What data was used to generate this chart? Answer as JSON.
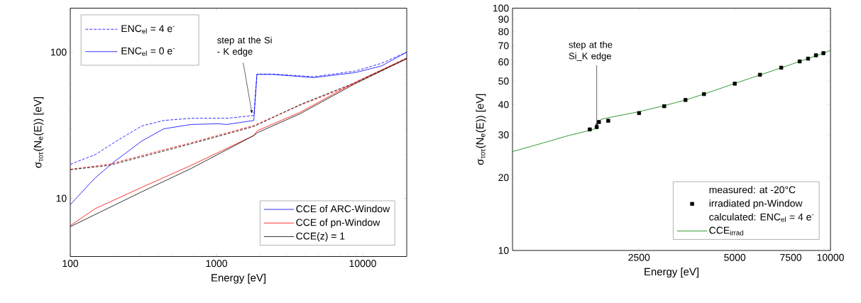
{
  "chart_data": [
    {
      "type": "line",
      "log": "xy",
      "xlim": [
        100,
        20000
      ],
      "ylim": [
        4,
        200
      ],
      "xticks": [
        100,
        1000,
        10000
      ],
      "yticks": [
        10,
        100
      ],
      "xlabel": "Energy [eV]",
      "ylabel": "σ$_{τοτ}$(N$_{e}$(E)) [eV]",
      "legend": "bottom right",
      "annotations": [
        "ENC$_{el}$ = 0 e$^{-}$",
        {
          "text": "step at the Si - K edge",
          "x": 1750,
          "y": 38
        }
      ],
      "series": [
        {
          "name": "ENC$_{el}$ = 4 e$^{-}$",
          "color": "#0000ff",
          "line_style": "dashed",
          "x": [
            100,
            148,
            201,
            309,
            436,
            670,
            1170,
            1730,
            1800,
            1890,
            2430,
            4630,
            8900,
            13500,
            20000
          ],
          "values": [
            17.1,
            19.9,
            24.2,
            31.3,
            34.1,
            35.3,
            35.3,
            36.7,
            37,
            70.8,
            70.8,
            67.9,
            74.3,
            84,
            100
          ]
        },
        {
          "name": "CCE of ARC-Window",
          "color": "#0000ff",
          "line_style": "solid",
          "x": [
            100,
            148,
            201,
            309,
            436,
            670,
            1030,
            1170,
            1800,
            1890,
            2430,
            4630,
            8900,
            13500,
            20000
          ],
          "values": [
            9.06,
            13.8,
            17.9,
            24.7,
            29.9,
            32.0,
            32.4,
            32.0,
            34.1,
            70.4,
            70.4,
            67.0,
            72.5,
            80.6,
            100
          ]
        },
        {
          "color": "#ff0000",
          "line_style": "dashed",
          "x": [
            100,
            184,
            351,
            670,
            1800,
            3730,
            8900,
            20000
          ],
          "values": [
            15.8,
            17.1,
            20.3,
            24.0,
            31.5,
            43.3,
            61,
            90.9
          ]
        },
        {
          "color": "#000000",
          "line_style": "dashed",
          "x": [
            100,
            184,
            351,
            670,
            1800,
            3730,
            8900,
            20000
          ],
          "values": [
            15.7,
            16.8,
            19.9,
            23.6,
            31.0,
            43.8,
            62,
            91
          ]
        },
        {
          "name": "CCE of pn-Window",
          "color": "#ff0000",
          "line_style": "solid",
          "x": [
            100,
            148,
            309,
            670,
            1800,
            1900,
            3730,
            8900,
            20000
          ],
          "values": [
            6.5,
            8.5,
            11.9,
            16.8,
            26.9,
            29.0,
            38.8,
            62.3,
            90.9
          ]
        },
        {
          "name": "CCE(z) = 1",
          "color": "#000000",
          "line_style": "solid",
          "x": [
            100,
            309,
            670,
            1800,
            1900,
            3730,
            8900,
            20000
          ],
          "values": [
            6.4,
            11.1,
            16.0,
            26.9,
            28.1,
            37.9,
            61,
            90
          ]
        }
      ]
    },
    {
      "type": "line",
      "log": "xy",
      "xlim": [
        1000,
        10000
      ],
      "ylim": [
        10,
        100
      ],
      "xticks": [
        2500,
        5000,
        7500,
        10000
      ],
      "yticks": [
        10,
        20,
        30,
        40,
        50,
        60,
        70,
        80,
        90,
        100
      ],
      "xlabel": "Energy [eV]",
      "ylabel": "σ$_{τοτ}$(N$_{e}$(E)) [eV]",
      "legend": "bottom right",
      "annotations": [
        "measured: at -20°C",
        "calculated: ENC$_{el}$ = 4 e$^{-}$",
        {
          "text": "step at the Si_K edge",
          "x": 1840,
          "y": 32.3
        }
      ],
      "series": [
        {
          "name": "irradiated pn-Window",
          "type": "scatter",
          "marker": "square",
          "color": "#000000",
          "x": [
            1750,
            1840,
            1870,
            2000,
            2500,
            3000,
            3500,
            4000,
            5000,
            6000,
            7000,
            8000,
            8500,
            9000,
            9500
          ],
          "values": [
            31.6,
            32.3,
            33.9,
            34.3,
            36.9,
            39.4,
            41.8,
            44.2,
            48.8,
            53.1,
            56.8,
            60.3,
            61.9,
            63.9,
            65.2
          ]
        },
        {
          "name": "CCE$_{irrad}$",
          "type": "line",
          "color": "#008000",
          "line_style": "solid",
          "x": [
            1000,
            1250,
            1500,
            1750,
            1820,
            1860,
            1900,
            2000,
            2500,
            3000,
            3500,
            4000,
            5000,
            6000,
            7000,
            8000,
            9000,
            10000
          ],
          "values": [
            25.6,
            27.8,
            29.8,
            31.3,
            31.8,
            33.5,
            34.8,
            35.3,
            37.4,
            39.6,
            41.8,
            44.2,
            48.9,
            53.0,
            56.7,
            60.3,
            63.6,
            66.9
          ]
        }
      ]
    }
  ]
}
